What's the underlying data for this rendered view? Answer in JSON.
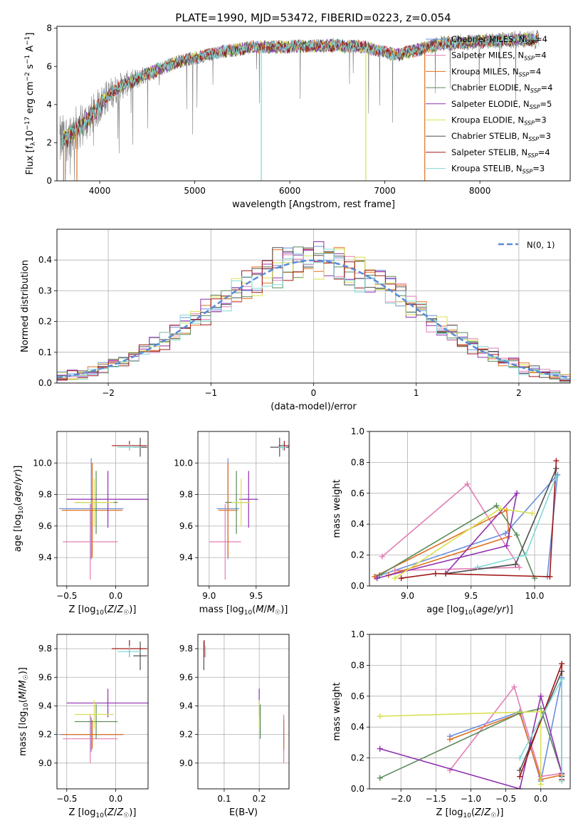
{
  "title": "PLATE=1990, MJD=53472, FIBERID=0223, z=0.054",
  "colors": {
    "Chabrier MILES": "#6a8fdd",
    "Salpeter MILES": "#e27db5",
    "Kroupa MILES": "#e07020",
    "Chabrier ELODIE": "#5a8a5a",
    "Salpeter ELODIE": "#9030b0",
    "Kroupa ELODIE": "#d8e050",
    "Chabrier STELIB": "#505050",
    "Salpeter STELIB": "#a01818",
    "Kroupa STELIB": "#80d8d8",
    "data": "#808080",
    "normal": "#5a8ad8"
  },
  "chart_data": [
    {
      "id": "spectrum",
      "type": "line",
      "xlabel": "wavelength [Angstrom, rest frame]",
      "ylabel": "Flux [f_λ10^-17 erg cm^-2 s^-1 A^-1]",
      "xlim": [
        3550,
        8950
      ],
      "ylim": [
        0,
        8.1
      ],
      "xticks": [
        "4000",
        "5000",
        "6000",
        "7000",
        "8000"
      ],
      "yticks": [
        "0",
        "2",
        "4",
        "6",
        "8"
      ],
      "legend": "upper-right",
      "legend_entries": [
        {
          "base": "Chabrier MILES, N",
          "sub": "SSP",
          "tail": "=4"
        },
        {
          "base": "Salpeter MILES, N",
          "sub": "SSP",
          "tail": "=4"
        },
        {
          "base": "Kroupa MILES, N",
          "sub": "SSP",
          "tail": "=4"
        },
        {
          "base": "Chabrier ELODIE, N",
          "sub": "SSP",
          "tail": "=4"
        },
        {
          "base": "Salpeter ELODIE, N",
          "sub": "SSP",
          "tail": "=5"
        },
        {
          "base": "Kroupa ELODIE, N",
          "sub": "SSP",
          "tail": "=3"
        },
        {
          "base": "Chabrier STELIB, N",
          "sub": "SSP",
          "tail": "=3"
        },
        {
          "base": "Salpeter STELIB, N",
          "sub": "SSP",
          "tail": "=4"
        },
        {
          "base": "Kroupa STELIB, N",
          "sub": "SSP",
          "tail": "=3"
        }
      ],
      "continuum_knots": [
        [
          3580,
          2.0
        ],
        [
          3700,
          2.5
        ],
        [
          3850,
          3.1
        ],
        [
          3950,
          3.6
        ],
        [
          4050,
          4.3
        ],
        [
          4200,
          4.9
        ],
        [
          4500,
          5.6
        ],
        [
          4800,
          6.2
        ],
        [
          5200,
          6.7
        ],
        [
          5600,
          7.0
        ],
        [
          6000,
          7.05
        ],
        [
          6500,
          7.1
        ],
        [
          6800,
          7.0
        ],
        [
          7100,
          6.6
        ],
        [
          7300,
          6.8
        ],
        [
          7600,
          7.2
        ],
        [
          8000,
          7.3
        ],
        [
          8400,
          7.4
        ],
        [
          8620,
          7.4
        ]
      ],
      "noise_scale": [
        [
          3580,
          1.4
        ],
        [
          4000,
          1.0
        ],
        [
          4500,
          0.45
        ],
        [
          5000,
          0.35
        ],
        [
          6000,
          0.35
        ],
        [
          7000,
          0.35
        ],
        [
          8000,
          0.45
        ],
        [
          8620,
          0.5
        ]
      ]
    },
    {
      "id": "residuals",
      "type": "histogram",
      "xlabel": "(data-model)/error",
      "ylabel": "Normed distribution",
      "xlim": [
        -2.5,
        2.5
      ],
      "ylim": [
        0,
        0.5
      ],
      "xticks": [
        "−2",
        "−1",
        "0",
        "1",
        "2"
      ],
      "yticks": [
        "0.0",
        "0.1",
        "0.2",
        "0.3",
        "0.4"
      ],
      "bin_width": 0.1,
      "legend": "upper-right",
      "gaussian_label": "N(0, 1)"
    },
    {
      "id": "age-vs-Z",
      "type": "errorbar",
      "xlabel": "Z [log10(Z/Z☉)]",
      "ylabel": "age [log10(age/yr)]",
      "xlim": [
        -0.6,
        0.33
      ],
      "ylim": [
        9.22,
        10.2
      ],
      "xticks": [
        "−0.5",
        "0.0"
      ],
      "yticks": [
        "9.4",
        "9.6",
        "9.8",
        "10.0"
      ],
      "points": [
        {
          "model": "Chabrier MILES",
          "x": -0.25,
          "xerr": 0.33,
          "y": 9.71,
          "yerr": 0.32
        },
        {
          "model": "Salpeter MILES",
          "x": -0.26,
          "xerr": 0.28,
          "y": 9.5,
          "yerr": 0.24
        },
        {
          "model": "Kroupa MILES",
          "x": -0.24,
          "xerr": 0.31,
          "y": 9.7,
          "yerr": 0.3
        },
        {
          "model": "Chabrier ELODIE",
          "x": -0.2,
          "xerr": 0.22,
          "y": 9.75,
          "yerr": 0.2
        },
        {
          "model": "Salpeter ELODIE",
          "x": -0.08,
          "xerr": 0.42,
          "y": 9.77,
          "yerr": 0.18
        },
        {
          "model": "Kroupa ELODIE",
          "x": -0.22,
          "xerr": 0.2,
          "y": 9.75,
          "yerr": 0.15
        },
        {
          "model": "Chabrier STELIB",
          "x": 0.25,
          "xerr": 0.07,
          "y": 10.1,
          "yerr": 0.06
        },
        {
          "model": "Salpeter STELIB",
          "x": 0.14,
          "xerr": 0.18,
          "y": 10.11,
          "yerr": 0.03
        },
        {
          "model": "Kroupa STELIB",
          "x": 0.14,
          "xerr": 0.12,
          "y": 10.1,
          "yerr": 0.02
        }
      ]
    },
    {
      "id": "age-vs-mass",
      "type": "errorbar",
      "xlabel": "mass [log10(M/M☉)]",
      "ylabel": "",
      "xlim": [
        8.88,
        9.85
      ],
      "ylim": [
        9.22,
        10.2
      ],
      "xticks": [
        "9.0",
        "9.5"
      ],
      "yticks": [
        "9.4",
        "9.6",
        "9.8",
        "10.0"
      ],
      "points": [
        {
          "model": "Chabrier MILES",
          "x": 9.2,
          "xerr": 0.12,
          "y": 9.71,
          "yerr": 0.32
        },
        {
          "model": "Salpeter MILES",
          "x": 9.17,
          "xerr": 0.17,
          "y": 9.5,
          "yerr": 0.24
        },
        {
          "model": "Kroupa MILES",
          "x": 9.2,
          "xerr": 0.1,
          "y": 9.7,
          "yerr": 0.3
        },
        {
          "model": "Chabrier ELODIE",
          "x": 9.29,
          "xerr": 0.12,
          "y": 9.75,
          "yerr": 0.2
        },
        {
          "model": "Salpeter ELODIE",
          "x": 9.42,
          "xerr": 0.1,
          "y": 9.77,
          "yerr": 0.18
        },
        {
          "model": "Kroupa ELODIE",
          "x": 9.34,
          "xerr": 0.1,
          "y": 9.75,
          "yerr": 0.15
        },
        {
          "model": "Chabrier STELIB",
          "x": 9.75,
          "xerr": 0.1,
          "y": 10.1,
          "yerr": 0.06
        },
        {
          "model": "Salpeter STELIB",
          "x": 9.8,
          "xerr": 0.06,
          "y": 10.11,
          "yerr": 0.03
        },
        {
          "model": "Kroupa STELIB",
          "x": 9.78,
          "xerr": 0.04,
          "y": 10.1,
          "yerr": 0.02
        }
      ]
    },
    {
      "id": "massweight-vs-age",
      "type": "line",
      "xlabel": "age [log10(age/yr)]",
      "ylabel": "mass weight",
      "xlim": [
        8.7,
        10.28
      ],
      "ylim": [
        0,
        1.0
      ],
      "xticks": [
        "9.0",
        "9.5",
        "10.0"
      ],
      "yticks": [
        "0.0",
        "0.2",
        "0.4",
        "0.6",
        "0.8",
        "1.0"
      ],
      "series": [
        {
          "model": "Chabrier MILES",
          "points": [
            [
              8.75,
              0.06
            ],
            [
              9.77,
              0.34
            ],
            [
              10.18,
              0.72
            ],
            [
              10.1,
              0.06
            ]
          ]
        },
        {
          "model": "Salpeter MILES",
          "points": [
            [
              8.8,
              0.19
            ],
            [
              9.47,
              0.66
            ],
            [
              9.88,
              0.12
            ],
            [
              8.9,
              0.1
            ]
          ]
        },
        {
          "model": "Kroupa MILES",
          "points": [
            [
              8.74,
              0.06
            ],
            [
              9.78,
              0.49
            ],
            [
              9.8,
              0.32
            ],
            [
              8.85,
              0.07
            ]
          ]
        },
        {
          "model": "Chabrier ELODIE",
          "points": [
            [
              8.78,
              0.07
            ],
            [
              9.7,
              0.52
            ],
            [
              9.86,
              0.33
            ],
            [
              10.0,
              0.05
            ]
          ]
        },
        {
          "model": "Salpeter ELODIE",
          "points": [
            [
              8.76,
              0.05
            ],
            [
              9.78,
              0.26
            ],
            [
              9.86,
              0.6
            ],
            [
              9.3,
              0.08
            ]
          ]
        },
        {
          "model": "Kroupa ELODIE",
          "points": [
            [
              8.9,
              0.05
            ],
            [
              9.73,
              0.5
            ],
            [
              9.98,
              0.47
            ]
          ]
        },
        {
          "model": "Chabrier STELIB",
          "points": [
            [
              9.3,
              0.08
            ],
            [
              9.85,
              0.14
            ],
            [
              10.17,
              0.76
            ]
          ]
        },
        {
          "model": "Salpeter STELIB",
          "points": [
            [
              8.95,
              0.05
            ],
            [
              9.22,
              0.08
            ],
            [
              10.12,
              0.06
            ],
            [
              10.17,
              0.81
            ]
          ]
        },
        {
          "model": "Kroupa STELIB",
          "points": [
            [
              9.55,
              0.12
            ],
            [
              9.93,
              0.2
            ],
            [
              10.17,
              0.71
            ]
          ]
        }
      ]
    },
    {
      "id": "mass-vs-Z",
      "type": "errorbar",
      "xlabel": "Z [log10(Z/Z☉)]",
      "ylabel": "mass [log10(M/M☉)]",
      "xlim": [
        -0.6,
        0.33
      ],
      "ylim": [
        8.82,
        9.9
      ],
      "xticks": [
        "−0.5",
        "0.0"
      ],
      "yticks": [
        "9.0",
        "9.2",
        "9.4",
        "9.6",
        "9.8"
      ],
      "points": [
        {
          "model": "Chabrier MILES",
          "x": -0.25,
          "xerr": 0.33,
          "y": 9.2,
          "yerr": 0.12
        },
        {
          "model": "Salpeter MILES",
          "x": -0.26,
          "xerr": 0.28,
          "y": 9.17,
          "yerr": 0.17
        },
        {
          "model": "Kroupa MILES",
          "x": -0.24,
          "xerr": 0.31,
          "y": 9.2,
          "yerr": 0.1
        },
        {
          "model": "Chabrier ELODIE",
          "x": -0.2,
          "xerr": 0.22,
          "y": 9.29,
          "yerr": 0.12
        },
        {
          "model": "Salpeter ELODIE",
          "x": -0.08,
          "xerr": 0.42,
          "y": 9.42,
          "yerr": 0.1
        },
        {
          "model": "Kroupa ELODIE",
          "x": -0.22,
          "xerr": 0.2,
          "y": 9.34,
          "yerr": 0.1
        },
        {
          "model": "Chabrier STELIB",
          "x": 0.25,
          "xerr": 0.07,
          "y": 9.75,
          "yerr": 0.1
        },
        {
          "model": "Salpeter STELIB",
          "x": 0.14,
          "xerr": 0.18,
          "y": 9.8,
          "yerr": 0.06
        },
        {
          "model": "Kroupa STELIB",
          "x": 0.14,
          "xerr": 0.12,
          "y": 9.78,
          "yerr": 0.04
        }
      ]
    },
    {
      "id": "mass-vs-ebv",
      "type": "errorbar",
      "xlabel": "E(B-V)",
      "ylabel": "",
      "xlim": [
        0.025,
        0.285
      ],
      "ylim": [
        8.82,
        9.9
      ],
      "xticks": [
        "0.1",
        "0.2"
      ],
      "yticks": [
        "9.0",
        "9.2",
        "9.4",
        "9.6",
        "9.8"
      ],
      "points": [
        {
          "model": "Chabrier MILES",
          "x": 0.27,
          "xerr": 0,
          "y": 9.2,
          "yerr": 0.12
        },
        {
          "model": "Salpeter MILES",
          "x": 0.27,
          "xerr": 0,
          "y": 9.17,
          "yerr": 0.17
        },
        {
          "model": "Kroupa MILES",
          "x": 0.27,
          "xerr": 0,
          "y": 9.2,
          "yerr": 0.1
        },
        {
          "model": "Chabrier ELODIE",
          "x": 0.203,
          "xerr": 0,
          "y": 9.29,
          "yerr": 0.12
        },
        {
          "model": "Salpeter ELODIE",
          "x": 0.2,
          "xerr": 0,
          "y": 9.42,
          "yerr": 0.1
        },
        {
          "model": "Kroupa ELODIE",
          "x": 0.2,
          "xerr": 0,
          "y": 9.34,
          "yerr": 0.1
        },
        {
          "model": "Chabrier STELIB",
          "x": 0.042,
          "xerr": 0,
          "y": 9.75,
          "yerr": 0.1
        },
        {
          "model": "Salpeter STELIB",
          "x": 0.043,
          "xerr": 0,
          "y": 9.8,
          "yerr": 0.06
        },
        {
          "model": "Kroupa STELIB",
          "x": 0.047,
          "xerr": 0,
          "y": 9.78,
          "yerr": 0.04
        }
      ]
    },
    {
      "id": "massweight-vs-Z",
      "type": "line",
      "xlabel": "Z [log10(Z/Z☉)]",
      "ylabel": "mass weight",
      "xlim": [
        -2.45,
        0.42
      ],
      "ylim": [
        0,
        1.0
      ],
      "xticks": [
        "−2.0",
        "−1.5",
        "−1.0",
        "−0.5",
        "0.0"
      ],
      "yticks": [
        "0.0",
        "0.2",
        "0.4",
        "0.6",
        "0.8",
        "1.0"
      ],
      "series": [
        {
          "model": "Chabrier MILES",
          "points": [
            [
              -1.3,
              0.34
            ],
            [
              -0.3,
              0.5
            ],
            [
              0.0,
              0.05
            ],
            [
              0.3,
              0.72
            ]
          ]
        },
        {
          "model": "Salpeter MILES",
          "points": [
            [
              -1.3,
              0.12
            ],
            [
              -0.38,
              0.66
            ],
            [
              0.0,
              0.08
            ],
            [
              0.3,
              0.1
            ]
          ]
        },
        {
          "model": "Kroupa MILES",
          "points": [
            [
              -1.3,
              0.32
            ],
            [
              -0.3,
              0.49
            ],
            [
              0.0,
              0.06
            ],
            [
              0.3,
              0.09
            ]
          ]
        },
        {
          "model": "Chabrier ELODIE",
          "points": [
            [
              -2.3,
              0.07
            ],
            [
              -0.3,
              0.49
            ],
            [
              0.0,
              0.52
            ],
            [
              0.3,
              0.1
            ]
          ]
        },
        {
          "model": "Salpeter ELODIE",
          "points": [
            [
              -2.3,
              0.26
            ],
            [
              -0.3,
              0.0
            ],
            [
              0.0,
              0.6
            ],
            [
              0.3,
              0.1
            ]
          ]
        },
        {
          "model": "Kroupa ELODIE",
          "points": [
            [
              -2.3,
              0.47
            ],
            [
              0.0,
              0.5
            ],
            [
              0.0,
              0.03
            ]
          ]
        },
        {
          "model": "Chabrier STELIB",
          "points": [
            [
              -0.3,
              0.12
            ],
            [
              0.3,
              0.76
            ],
            [
              0.3,
              0.08
            ]
          ]
        },
        {
          "model": "Salpeter STELIB",
          "points": [
            [
              -0.3,
              0.08
            ],
            [
              0.3,
              0.81
            ],
            [
              0.3,
              0.06
            ]
          ]
        },
        {
          "model": "Kroupa STELIB",
          "points": [
            [
              -0.3,
              0.2
            ],
            [
              0.3,
              0.71
            ],
            [
              0.3,
              0.05
            ]
          ]
        }
      ]
    }
  ]
}
